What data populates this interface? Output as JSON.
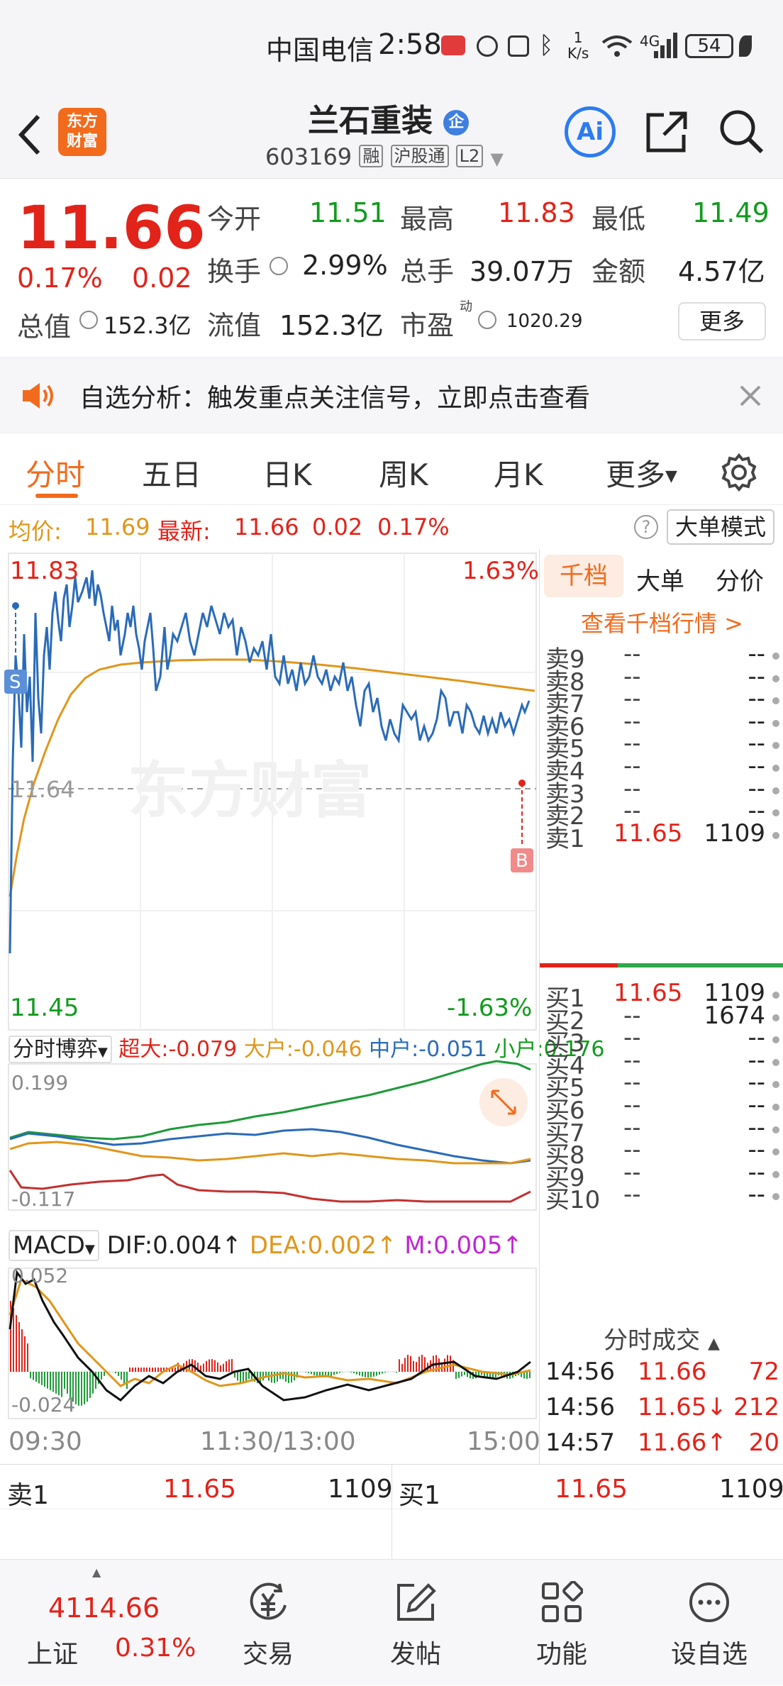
{
  "status_bar": {
    "carrier": "中国电信",
    "time": "2:58",
    "net_speed_top": "1",
    "net_speed_unit": "K/s",
    "network": "4G",
    "battery": "54"
  },
  "header": {
    "logo_line1": "东方",
    "logo_line2": "财富",
    "stock_name": "兰石重装",
    "badge": "企",
    "code": "603169",
    "tag_rong": "融",
    "tag_hgt": "沪股通",
    "tag_l2": "L2",
    "ai_label": "Ai"
  },
  "quote": {
    "price": "11.66",
    "change_pct": "0.17%",
    "change": "0.02",
    "open_label": "今开",
    "open": "11.51",
    "high_label": "最高",
    "high": "11.83",
    "low_label": "最低",
    "low": "11.49",
    "turnover_label": "换手",
    "turnover": "2.99%",
    "volume_label": "总手",
    "volume": "39.07万",
    "amount_label": "金额",
    "amount": "4.57亿",
    "mcap_label": "总值",
    "mcap": "152.3亿",
    "float_label": "流值",
    "float": "152.3亿",
    "pe_label": "市盈",
    "pe_sup": "动",
    "pe": "1020.29",
    "more": "更多"
  },
  "notice": {
    "text": "自选分析：触发重点关注信号，立即点击查看"
  },
  "tabs": [
    "分时",
    "五日",
    "日K",
    "周K",
    "月K",
    "更多"
  ],
  "price_bar": {
    "avg_label": "均价:",
    "avg": "11.69",
    "latest_label": "最新:",
    "latest": "11.66",
    "chg": "0.02",
    "pct": "0.17%",
    "big_order_mode": "大单模式"
  },
  "chart": {
    "y_top": "11.83",
    "y_top_pct": "1.63%",
    "y_mid": "11.64",
    "y_bot": "11.45",
    "y_bot_pct": "-1.63%",
    "marker_s": "S",
    "marker_b": "B",
    "watermark": "东方财富"
  },
  "flow": {
    "selector": "分时博弈",
    "super_label": "超大:",
    "super": "-0.079",
    "big_label": "大户:",
    "big": "-0.046",
    "mid_label": "中户:",
    "mid": "-0.051",
    "small_label": "小户:",
    "small": "0.176",
    "y_top": "0.199",
    "y_bot": "-0.117"
  },
  "macd": {
    "selector": "MACD",
    "dif_label": "DIF:",
    "dif": "0.004",
    "dea_label": "DEA:",
    "dea": "0.002",
    "m_label": "M:",
    "m": "0.005",
    "y_top": "0.052",
    "y_bot": "-0.024"
  },
  "time_axis": [
    "09:30",
    "11:30/13:00",
    "15:00"
  ],
  "book": {
    "tabs": [
      "千档",
      "大单",
      "分价"
    ],
    "link": "查看千档行情 >",
    "asks": [
      {
        "label": "卖9",
        "price": "--",
        "vol": "--"
      },
      {
        "label": "卖8",
        "price": "--",
        "vol": "--"
      },
      {
        "label": "卖7",
        "price": "--",
        "vol": "--"
      },
      {
        "label": "卖6",
        "price": "--",
        "vol": "--"
      },
      {
        "label": "卖5",
        "price": "--",
        "vol": "--"
      },
      {
        "label": "卖4",
        "price": "--",
        "vol": "--"
      },
      {
        "label": "卖3",
        "price": "--",
        "vol": "--"
      },
      {
        "label": "卖2",
        "price": "--",
        "vol": "--"
      },
      {
        "label": "卖1",
        "price": "11.65",
        "vol": "1109"
      }
    ],
    "bids": [
      {
        "label": "买1",
        "price": "11.65",
        "vol": "1109"
      },
      {
        "label": "买2",
        "price": "--",
        "vol": "1674"
      },
      {
        "label": "买3",
        "price": "--",
        "vol": "--"
      },
      {
        "label": "买4",
        "price": "--",
        "vol": "--"
      },
      {
        "label": "买5",
        "price": "--",
        "vol": "--"
      },
      {
        "label": "买6",
        "price": "--",
        "vol": "--"
      },
      {
        "label": "买7",
        "price": "--",
        "vol": "--"
      },
      {
        "label": "买8",
        "price": "--",
        "vol": "--"
      },
      {
        "label": "买9",
        "price": "--",
        "vol": "--"
      },
      {
        "label": "买10",
        "price": "--",
        "vol": "--"
      }
    ],
    "trades_title": "分时成交",
    "trades": [
      {
        "time": "14:56",
        "price": "11.66",
        "vol": "72"
      },
      {
        "time": "14:56",
        "price": "11.65↓",
        "vol": "212"
      },
      {
        "time": "14:57",
        "price": "11.66↑",
        "vol": "20"
      }
    ]
  },
  "bottom_quote": {
    "left_label": "卖1",
    "left_price": "11.65",
    "left_vol": "1109",
    "right_label": "买1",
    "right_price": "11.65",
    "right_vol": "1109"
  },
  "tabbar": {
    "index_value": "4114.66",
    "index_name": "上证",
    "index_pct": "0.31%",
    "items": [
      "交易",
      "发帖",
      "功能",
      "设自选"
    ]
  },
  "colors": {
    "up": "#e2231a",
    "down": "#129b1e",
    "accent": "#f26b1d",
    "price_line": "#2a6bb8",
    "avg_line": "#e0961a"
  }
}
